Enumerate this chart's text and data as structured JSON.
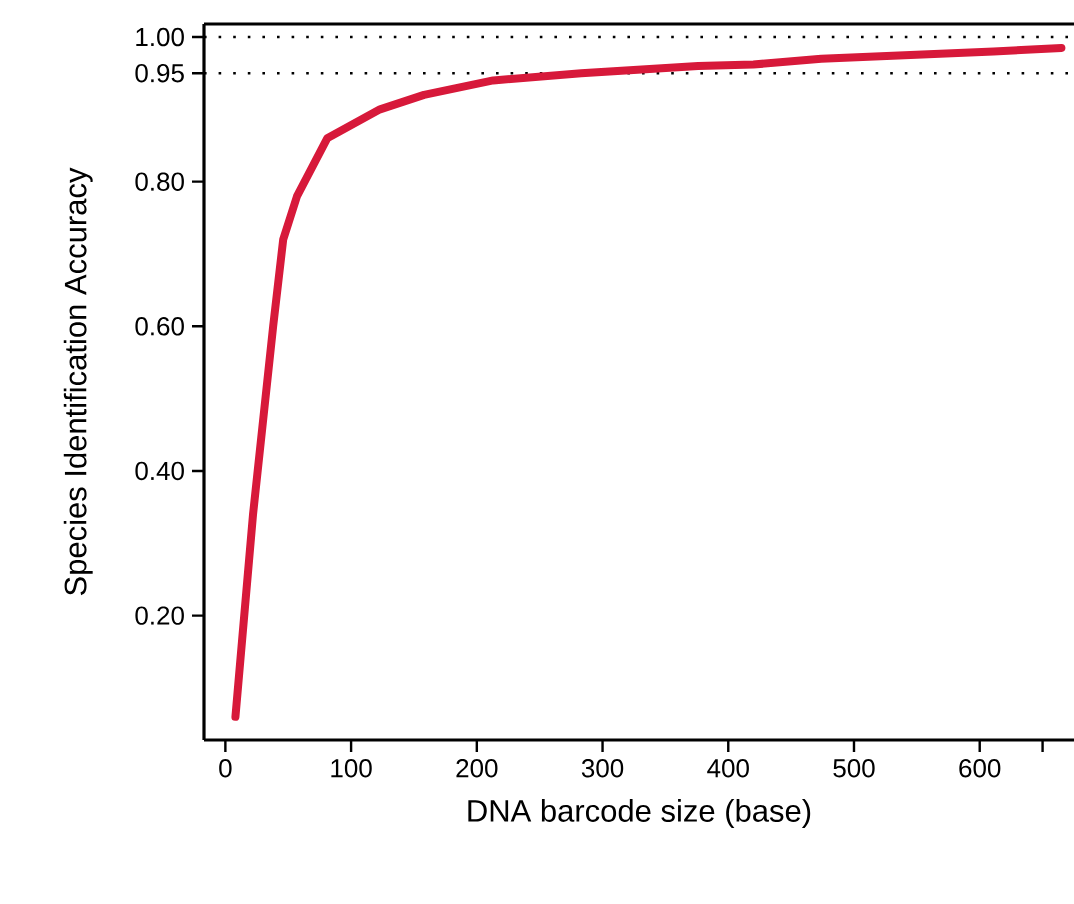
{
  "chart_data": {
    "type": "line",
    "xlabel": "DNA barcode size (base)",
    "ylabel": "Species Identification Accuracy",
    "x": [
      8,
      22,
      38,
      46,
      57,
      81,
      123,
      158,
      213,
      283,
      376,
      420,
      474,
      611,
      665
    ],
    "series": [
      {
        "color": "#d7193a",
        "values": [
          0.06,
          0.34,
          0.6,
          0.72,
          0.78,
          0.86,
          0.9,
          0.92,
          0.94,
          0.95,
          0.96,
          0.962,
          0.97,
          0.98,
          0.985
        ]
      }
    ],
    "xlim": [
      -17,
      675
    ],
    "ylim": [
      0.028,
      1.018
    ],
    "xticks": [
      0,
      100,
      200,
      300,
      400,
      500,
      600,
      {
        "value": 650,
        "label": null
      }
    ],
    "yticks": [
      {
        "value": 0.2,
        "label": "0.20"
      },
      {
        "value": 0.4,
        "label": "0.40"
      },
      {
        "value": 0.6,
        "label": "0.60"
      },
      {
        "value": 0.8,
        "label": "0.80"
      },
      {
        "value": 0.95,
        "label": "0.95"
      },
      {
        "value": 1.0,
        "label": "1.00"
      }
    ],
    "ref_lines": [
      {
        "axis": "y",
        "value": 0.95,
        "line_style": "dotted"
      },
      {
        "axis": "y",
        "value": 1.0,
        "line_style": "dotted"
      }
    ],
    "grid": false,
    "marker": "none",
    "line_style": "solid"
  }
}
